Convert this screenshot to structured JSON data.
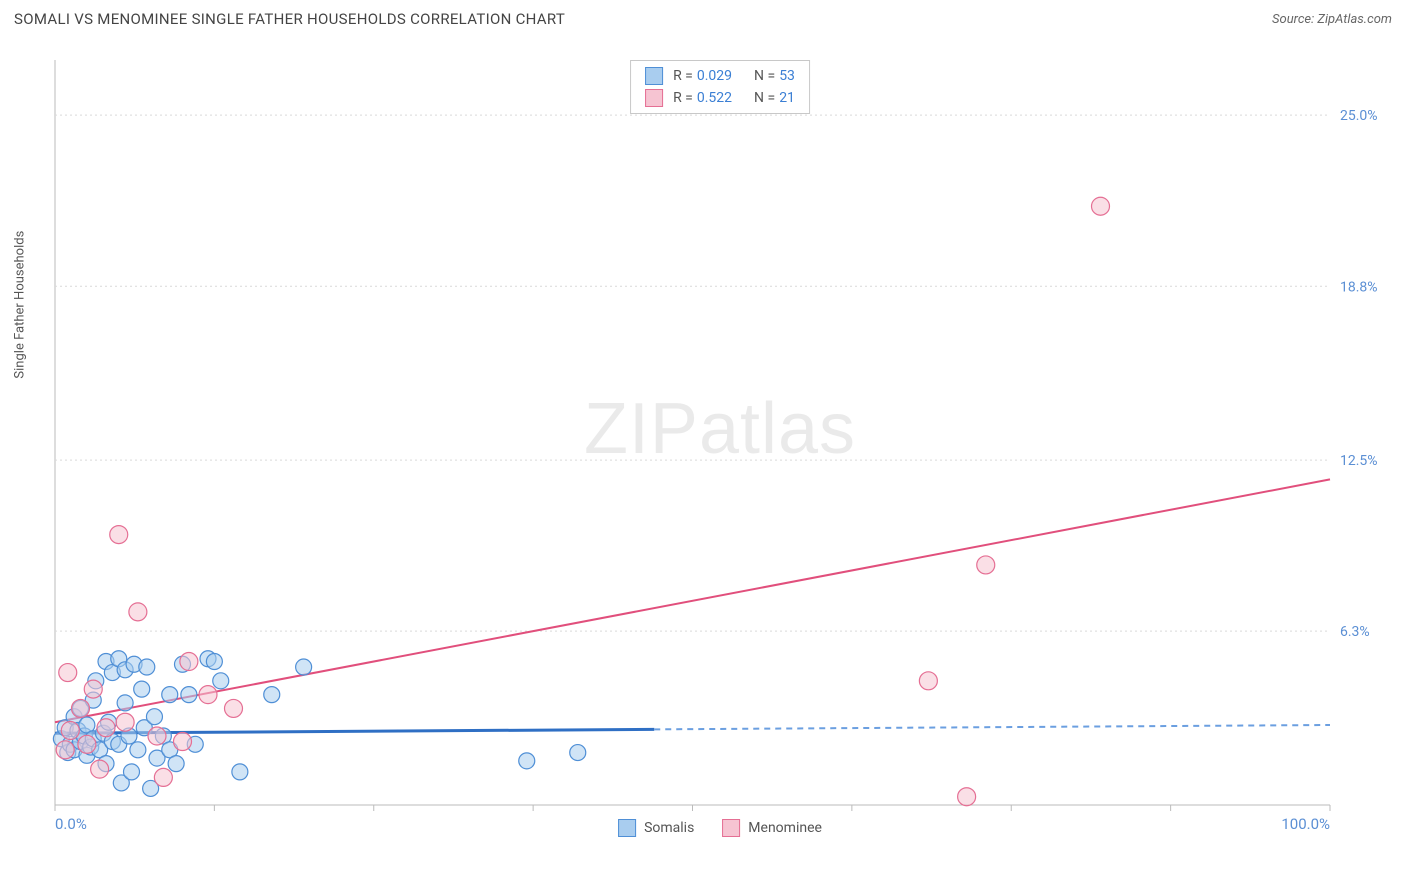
{
  "header": {
    "title": "SOMALI VS MENOMINEE SINGLE FATHER HOUSEHOLDS CORRELATION CHART",
    "source": "Source: ZipAtlas.com"
  },
  "watermark": {
    "bold": "ZIP",
    "light": "atlas"
  },
  "chart": {
    "type": "scatter",
    "y_label": "Single Father Households",
    "background_color": "#ffffff",
    "grid_color": "#d9d9d9",
    "axis_label_color": "#5b8fd4",
    "xlim": [
      0,
      100
    ],
    "ylim": [
      0,
      27
    ],
    "x_ticks": [
      0,
      12.5,
      25,
      37.5,
      50,
      62.5,
      75,
      87.5,
      100
    ],
    "y_gridlines": [
      6.3,
      12.5,
      18.8,
      25.0
    ],
    "x_axis_labels": [
      {
        "pos": 0,
        "text": "0.0%"
      },
      {
        "pos": 100,
        "text": "100.0%"
      }
    ],
    "y_axis_labels": [
      {
        "pos": 6.3,
        "text": "6.3%"
      },
      {
        "pos": 12.5,
        "text": "12.5%"
      },
      {
        "pos": 18.8,
        "text": "18.8%"
      },
      {
        "pos": 25.0,
        "text": "25.0%"
      }
    ],
    "series": [
      {
        "name": "Somalis",
        "fill_color": "#a9cdef",
        "stroke_color": "#4f8fd6",
        "swatch_fill": "#a9cdef",
        "swatch_border": "#4f8fd6",
        "legend": {
          "R": "0.029",
          "N": "53"
        },
        "regression": {
          "start": {
            "x": 0,
            "y": 2.6
          },
          "end": {
            "x": 100,
            "y": 2.9
          },
          "solid_until_x": 47,
          "solid_color": "#2f6fc4",
          "dash_color": "#6b9fe0",
          "solid_width": 3,
          "dash_width": 2
        },
        "marker_radius": 8,
        "points": [
          {
            "x": 0.5,
            "y": 2.4
          },
          {
            "x": 0.8,
            "y": 2.8
          },
          {
            "x": 1.0,
            "y": 1.9
          },
          {
            "x": 1.2,
            "y": 2.2
          },
          {
            "x": 1.5,
            "y": 3.2
          },
          {
            "x": 1.5,
            "y": 2.0
          },
          {
            "x": 1.8,
            "y": 2.7
          },
          {
            "x": 2.0,
            "y": 2.3
          },
          {
            "x": 2.0,
            "y": 3.5
          },
          {
            "x": 2.3,
            "y": 2.5
          },
          {
            "x": 2.5,
            "y": 1.8
          },
          {
            "x": 2.5,
            "y": 2.9
          },
          {
            "x": 2.8,
            "y": 2.1
          },
          {
            "x": 3.0,
            "y": 2.4
          },
          {
            "x": 3.0,
            "y": 3.8
          },
          {
            "x": 3.2,
            "y": 4.5
          },
          {
            "x": 3.5,
            "y": 2.0
          },
          {
            "x": 3.8,
            "y": 2.6
          },
          {
            "x": 4.0,
            "y": 5.2
          },
          {
            "x": 4.0,
            "y": 1.5
          },
          {
            "x": 4.2,
            "y": 3.0
          },
          {
            "x": 4.5,
            "y": 2.3
          },
          {
            "x": 4.5,
            "y": 4.8
          },
          {
            "x": 5.0,
            "y": 5.3
          },
          {
            "x": 5.0,
            "y": 2.2
          },
          {
            "x": 5.2,
            "y": 0.8
          },
          {
            "x": 5.5,
            "y": 3.7
          },
          {
            "x": 5.5,
            "y": 4.9
          },
          {
            "x": 5.8,
            "y": 2.5
          },
          {
            "x": 6.0,
            "y": 1.2
          },
          {
            "x": 6.2,
            "y": 5.1
          },
          {
            "x": 6.5,
            "y": 2.0
          },
          {
            "x": 6.8,
            "y": 4.2
          },
          {
            "x": 7.0,
            "y": 2.8
          },
          {
            "x": 7.2,
            "y": 5.0
          },
          {
            "x": 7.5,
            "y": 0.6
          },
          {
            "x": 7.8,
            "y": 3.2
          },
          {
            "x": 8.0,
            "y": 1.7
          },
          {
            "x": 8.5,
            "y": 2.5
          },
          {
            "x": 9.0,
            "y": 4.0
          },
          {
            "x": 9.0,
            "y": 2.0
          },
          {
            "x": 9.5,
            "y": 1.5
          },
          {
            "x": 10.0,
            "y": 5.1
          },
          {
            "x": 10.5,
            "y": 4.0
          },
          {
            "x": 11.0,
            "y": 2.2
          },
          {
            "x": 12.0,
            "y": 5.3
          },
          {
            "x": 12.5,
            "y": 5.2
          },
          {
            "x": 13.0,
            "y": 4.5
          },
          {
            "x": 14.5,
            "y": 1.2
          },
          {
            "x": 17.0,
            "y": 4.0
          },
          {
            "x": 19.5,
            "y": 5.0
          },
          {
            "x": 37.0,
            "y": 1.6
          },
          {
            "x": 41.0,
            "y": 1.9
          }
        ]
      },
      {
        "name": "Menominee",
        "fill_color": "#f6c4d2",
        "stroke_color": "#e56f94",
        "swatch_fill": "#f6c4d2",
        "swatch_border": "#e56f94",
        "legend": {
          "R": "0.522",
          "N": "21"
        },
        "regression": {
          "start": {
            "x": 0,
            "y": 3.0
          },
          "end": {
            "x": 100,
            "y": 11.8
          },
          "solid_until_x": 100,
          "solid_color": "#e14f7c",
          "dash_color": "#e14f7c",
          "solid_width": 2,
          "dash_width": 2
        },
        "marker_radius": 9,
        "points": [
          {
            "x": 0.8,
            "y": 2.0
          },
          {
            "x": 1.0,
            "y": 4.8
          },
          {
            "x": 1.2,
            "y": 2.7
          },
          {
            "x": 2.0,
            "y": 3.5
          },
          {
            "x": 2.5,
            "y": 2.2
          },
          {
            "x": 3.0,
            "y": 4.2
          },
          {
            "x": 3.5,
            "y": 1.3
          },
          {
            "x": 4.0,
            "y": 2.8
          },
          {
            "x": 5.0,
            "y": 9.8
          },
          {
            "x": 5.5,
            "y": 3.0
          },
          {
            "x": 6.5,
            "y": 7.0
          },
          {
            "x": 8.0,
            "y": 2.5
          },
          {
            "x": 8.5,
            "y": 1.0
          },
          {
            "x": 10.0,
            "y": 2.3
          },
          {
            "x": 10.5,
            "y": 5.2
          },
          {
            "x": 12.0,
            "y": 4.0
          },
          {
            "x": 14.0,
            "y": 3.5
          },
          {
            "x": 68.5,
            "y": 4.5
          },
          {
            "x": 71.5,
            "y": 0.3
          },
          {
            "x": 73.0,
            "y": 8.7
          },
          {
            "x": 82.0,
            "y": 21.7
          }
        ]
      }
    ]
  }
}
